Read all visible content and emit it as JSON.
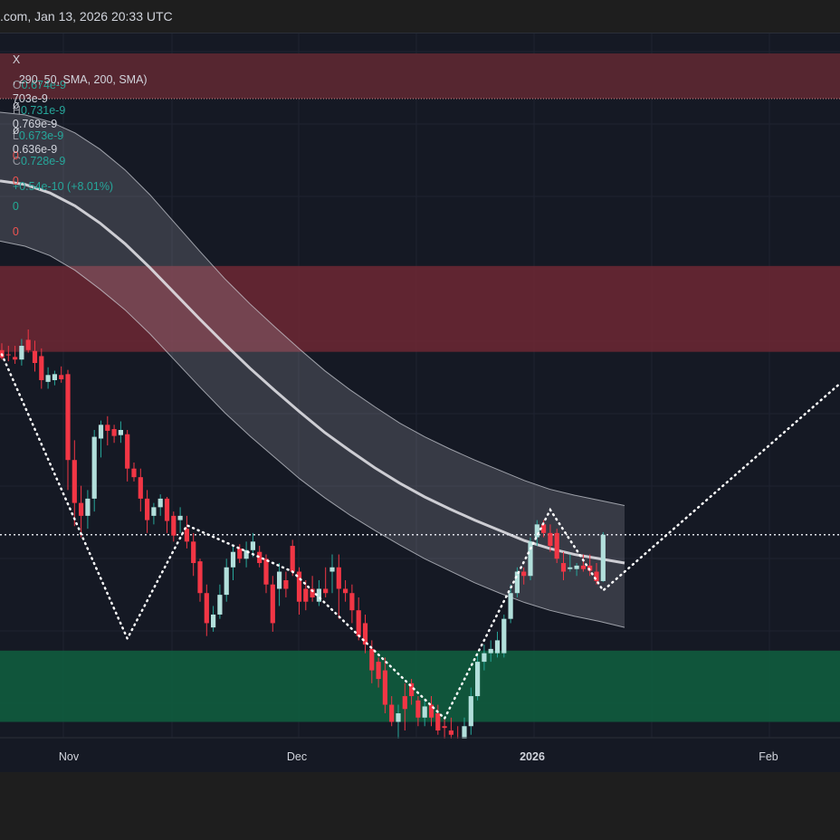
{
  "header": {
    "title": ".com, Jan 13, 2026 20:33 UTC"
  },
  "legend": {
    "ohlc": {
      "symbol_fragment": "X",
      "o_label": "O",
      "o": "0.674e-9",
      "h_label": "H",
      "h": "0.731e-9",
      "l_label": "L",
      "l": "0.673e-9",
      "c_label": "C",
      "c": "0.728e-9",
      "change": "+0.54e-10 (+8.01%)"
    },
    "indicator": {
      "params": ", 290, 50, SMA, 200, SMA)",
      "v1": "ø",
      "v2": "ø",
      "v3": "0",
      "v4": "0",
      "v5": "0",
      "v6": "0"
    },
    "bands": {
      "v1": "703e-9",
      "v2": "0.769e-9",
      "v3": "0.636e-9"
    }
  },
  "colors": {
    "up": "#b2dfdb",
    "down": "#f23645",
    "band": "#d1d4dc",
    "supply_zone": "#7a2a35",
    "demand_zone": "#0f5c3e",
    "projection": "#ffffff"
  },
  "chart_data": {
    "type": "candlestick",
    "x_axis": {
      "tick_labels": [
        "Nov",
        "Dec",
        "2026",
        "Feb"
      ],
      "bold": "2026"
    },
    "y_scale": "e-9",
    "candles": [
      {
        "o": 0.943,
        "h": 0.951,
        "l": 0.932,
        "c": 0.934
      },
      {
        "o": 0.938,
        "h": 0.948,
        "l": 0.93,
        "c": 0.937
      },
      {
        "o": 0.935,
        "h": 0.948,
        "l": 0.927,
        "c": 0.932
      },
      {
        "o": 0.932,
        "h": 0.956,
        "l": 0.925,
        "c": 0.948
      },
      {
        "o": 0.955,
        "h": 0.967,
        "l": 0.94,
        "c": 0.943
      },
      {
        "o": 0.942,
        "h": 0.954,
        "l": 0.918,
        "c": 0.928
      },
      {
        "o": 0.936,
        "h": 0.945,
        "l": 0.898,
        "c": 0.908
      },
      {
        "o": 0.906,
        "h": 0.923,
        "l": 0.898,
        "c": 0.914
      },
      {
        "o": 0.908,
        "h": 0.919,
        "l": 0.902,
        "c": 0.915
      },
      {
        "o": 0.914,
        "h": 0.924,
        "l": 0.905,
        "c": 0.909
      },
      {
        "o": 0.915,
        "h": 0.92,
        "l": 0.78,
        "c": 0.815
      },
      {
        "o": 0.815,
        "h": 0.838,
        "l": 0.738,
        "c": 0.765
      },
      {
        "o": 0.765,
        "h": 0.785,
        "l": 0.725,
        "c": 0.75
      },
      {
        "o": 0.75,
        "h": 0.78,
        "l": 0.735,
        "c": 0.77
      },
      {
        "o": 0.77,
        "h": 0.85,
        "l": 0.755,
        "c": 0.842
      },
      {
        "o": 0.84,
        "h": 0.861,
        "l": 0.818,
        "c": 0.856
      },
      {
        "o": 0.856,
        "h": 0.866,
        "l": 0.832,
        "c": 0.849
      },
      {
        "o": 0.851,
        "h": 0.856,
        "l": 0.835,
        "c": 0.843
      },
      {
        "o": 0.844,
        "h": 0.86,
        "l": 0.835,
        "c": 0.85
      },
      {
        "o": 0.845,
        "h": 0.85,
        "l": 0.79,
        "c": 0.805
      },
      {
        "o": 0.805,
        "h": 0.812,
        "l": 0.79,
        "c": 0.795
      },
      {
        "o": 0.795,
        "h": 0.805,
        "l": 0.755,
        "c": 0.77
      },
      {
        "o": 0.77,
        "h": 0.78,
        "l": 0.73,
        "c": 0.745
      },
      {
        "o": 0.75,
        "h": 0.765,
        "l": 0.74,
        "c": 0.76
      },
      {
        "o": 0.76,
        "h": 0.775,
        "l": 0.75,
        "c": 0.77
      },
      {
        "o": 0.77,
        "h": 0.772,
        "l": 0.73,
        "c": 0.744
      },
      {
        "o": 0.75,
        "h": 0.755,
        "l": 0.72,
        "c": 0.727
      },
      {
        "o": 0.745,
        "h": 0.76,
        "l": 0.73,
        "c": 0.75
      },
      {
        "o": 0.735,
        "h": 0.75,
        "l": 0.712,
        "c": 0.72
      },
      {
        "o": 0.72,
        "h": 0.73,
        "l": 0.68,
        "c": 0.695
      },
      {
        "o": 0.697,
        "h": 0.7,
        "l": 0.65,
        "c": 0.66
      },
      {
        "o": 0.66,
        "h": 0.67,
        "l": 0.61,
        "c": 0.625
      },
      {
        "o": 0.62,
        "h": 0.645,
        "l": 0.615,
        "c": 0.635
      },
      {
        "o": 0.635,
        "h": 0.67,
        "l": 0.63,
        "c": 0.658
      },
      {
        "o": 0.658,
        "h": 0.7,
        "l": 0.65,
        "c": 0.69
      },
      {
        "o": 0.69,
        "h": 0.715,
        "l": 0.675,
        "c": 0.708
      },
      {
        "o": 0.712,
        "h": 0.717,
        "l": 0.695,
        "c": 0.7
      },
      {
        "o": 0.7,
        "h": 0.72,
        "l": 0.69,
        "c": 0.71
      },
      {
        "o": 0.71,
        "h": 0.73,
        "l": 0.702,
        "c": 0.72
      },
      {
        "o": 0.708,
        "h": 0.715,
        "l": 0.69,
        "c": 0.695
      },
      {
        "o": 0.7,
        "h": 0.705,
        "l": 0.66,
        "c": 0.67
      },
      {
        "o": 0.67,
        "h": 0.68,
        "l": 0.615,
        "c": 0.625
      },
      {
        "o": 0.665,
        "h": 0.695,
        "l": 0.645,
        "c": 0.685
      },
      {
        "o": 0.675,
        "h": 0.685,
        "l": 0.655,
        "c": 0.665
      },
      {
        "o": 0.715,
        "h": 0.722,
        "l": 0.68,
        "c": 0.685
      },
      {
        "o": 0.685,
        "h": 0.69,
        "l": 0.635,
        "c": 0.65
      },
      {
        "o": 0.665,
        "h": 0.675,
        "l": 0.64,
        "c": 0.65
      },
      {
        "o": 0.665,
        "h": 0.68,
        "l": 0.65,
        "c": 0.655
      },
      {
        "o": 0.65,
        "h": 0.675,
        "l": 0.645,
        "c": 0.665
      },
      {
        "o": 0.665,
        "h": 0.69,
        "l": 0.655,
        "c": 0.66
      },
      {
        "o": 0.685,
        "h": 0.705,
        "l": 0.66,
        "c": 0.69
      },
      {
        "o": 0.69,
        "h": 0.705,
        "l": 0.63,
        "c": 0.665
      },
      {
        "o": 0.665,
        "h": 0.675,
        "l": 0.65,
        "c": 0.66
      },
      {
        "o": 0.66,
        "h": 0.67,
        "l": 0.625,
        "c": 0.64
      },
      {
        "o": 0.64,
        "h": 0.655,
        "l": 0.605,
        "c": 0.61
      },
      {
        "o": 0.625,
        "h": 0.635,
        "l": 0.59,
        "c": 0.6
      },
      {
        "o": 0.595,
        "h": 0.605,
        "l": 0.555,
        "c": 0.57
      },
      {
        "o": 0.58,
        "h": 0.585,
        "l": 0.55,
        "c": 0.56
      },
      {
        "o": 0.57,
        "h": 0.585,
        "l": 0.52,
        "c": 0.53
      },
      {
        "o": 0.53,
        "h": 0.54,
        "l": 0.505,
        "c": 0.51
      },
      {
        "o": 0.51,
        "h": 0.53,
        "l": 0.485,
        "c": 0.52
      },
      {
        "o": 0.54,
        "h": 0.555,
        "l": 0.5,
        "c": 0.525
      },
      {
        "o": 0.555,
        "h": 0.56,
        "l": 0.53,
        "c": 0.54
      },
      {
        "o": 0.535,
        "h": 0.54,
        "l": 0.505,
        "c": 0.515
      },
      {
        "o": 0.515,
        "h": 0.535,
        "l": 0.505,
        "c": 0.528
      },
      {
        "o": 0.53,
        "h": 0.54,
        "l": 0.505,
        "c": 0.515
      },
      {
        "o": 0.52,
        "h": 0.53,
        "l": 0.495,
        "c": 0.5
      },
      {
        "o": 0.505,
        "h": 0.515,
        "l": 0.49,
        "c": 0.503
      },
      {
        "o": 0.5,
        "h": 0.515,
        "l": 0.488,
        "c": 0.495
      },
      {
        "o": 0.49,
        "h": 0.505,
        "l": 0.475,
        "c": 0.485
      },
      {
        "o": 0.49,
        "h": 0.515,
        "l": 0.485,
        "c": 0.505
      },
      {
        "o": 0.505,
        "h": 0.55,
        "l": 0.495,
        "c": 0.54
      },
      {
        "o": 0.54,
        "h": 0.59,
        "l": 0.535,
        "c": 0.58
      },
      {
        "o": 0.58,
        "h": 0.6,
        "l": 0.57,
        "c": 0.59
      },
      {
        "o": 0.59,
        "h": 0.605,
        "l": 0.58,
        "c": 0.595
      },
      {
        "o": 0.59,
        "h": 0.615,
        "l": 0.585,
        "c": 0.605
      },
      {
        "o": 0.59,
        "h": 0.635,
        "l": 0.585,
        "c": 0.63
      },
      {
        "o": 0.63,
        "h": 0.67,
        "l": 0.625,
        "c": 0.66
      },
      {
        "o": 0.66,
        "h": 0.69,
        "l": 0.655,
        "c": 0.685
      },
      {
        "o": 0.685,
        "h": 0.69,
        "l": 0.67,
        "c": 0.68
      },
      {
        "o": 0.68,
        "h": 0.725,
        "l": 0.675,
        "c": 0.72
      },
      {
        "o": 0.725,
        "h": 0.745,
        "l": 0.715,
        "c": 0.74
      },
      {
        "o": 0.74,
        "h": 0.745,
        "l": 0.725,
        "c": 0.73
      },
      {
        "o": 0.73,
        "h": 0.74,
        "l": 0.708,
        "c": 0.715
      },
      {
        "o": 0.73,
        "h": 0.735,
        "l": 0.695,
        "c": 0.7
      },
      {
        "o": 0.695,
        "h": 0.708,
        "l": 0.675,
        "c": 0.685
      },
      {
        "o": 0.688,
        "h": 0.705,
        "l": 0.685,
        "c": 0.69
      },
      {
        "o": 0.688,
        "h": 0.695,
        "l": 0.68,
        "c": 0.692
      },
      {
        "o": 0.692,
        "h": 0.705,
        "l": 0.685,
        "c": 0.688
      },
      {
        "o": 0.692,
        "h": 0.705,
        "l": 0.68,
        "c": 0.686
      },
      {
        "o": 0.685,
        "h": 0.695,
        "l": 0.67,
        "c": 0.674
      },
      {
        "o": 0.674,
        "h": 0.731,
        "l": 0.673,
        "c": 0.728
      }
    ],
    "bands": {
      "middle": [
        1.14,
        1.136,
        1.126,
        1.111,
        1.091,
        1.067,
        1.039,
        1.009,
        0.979,
        0.95,
        0.922,
        0.896,
        0.871,
        0.847,
        0.826,
        0.806,
        0.788,
        0.772,
        0.758,
        0.745,
        0.733,
        0.721,
        0.712,
        0.705,
        0.7,
        0.695
      ],
      "upper": [
        1.22,
        1.217,
        1.209,
        1.196,
        1.177,
        1.153,
        1.124,
        1.091,
        1.058,
        1.026,
        0.997,
        0.97,
        0.944,
        0.919,
        0.897,
        0.877,
        0.858,
        0.842,
        0.828,
        0.815,
        0.803,
        0.791,
        0.781,
        0.774,
        0.768,
        0.762
      ],
      "lower": [
        1.07,
        1.064,
        1.053,
        1.036,
        1.014,
        0.99,
        0.962,
        0.931,
        0.9,
        0.87,
        0.843,
        0.818,
        0.793,
        0.771,
        0.751,
        0.733,
        0.716,
        0.7,
        0.686,
        0.672,
        0.66,
        0.649,
        0.64,
        0.633,
        0.627,
        0.62
      ]
    },
    "zones": {
      "supply": {
        "top": 1.041,
        "bottom": 0.941
      },
      "demand": {
        "top": 0.593,
        "bottom": 0.51
      }
    },
    "current_price": 0.728,
    "projection": [
      {
        "bar": 0,
        "price": 0.938
      },
      {
        "bar": 19,
        "price": 0.607
      },
      {
        "bar": 28,
        "price": 0.739
      },
      {
        "bar": 44,
        "price": 0.685
      },
      {
        "bar": 67,
        "price": 0.514
      },
      {
        "bar": 83,
        "price": 0.757
      },
      {
        "bar": 91,
        "price": 0.663
      },
      {
        "bar": 142,
        "price": 1.006
      }
    ]
  }
}
